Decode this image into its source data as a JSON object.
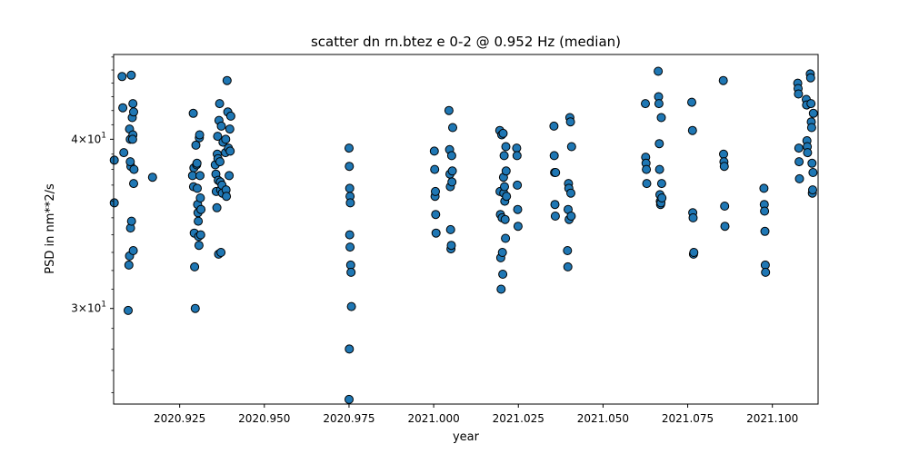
{
  "chart_data": {
    "type": "scatter",
    "title": "scatter dn rn.btez e 0-2 @ 0.952 Hz (median)",
    "xlabel": "year",
    "ylabel": "PSD in nm**2/s",
    "xlim": [
      2020.9055,
      2021.1135
    ],
    "ylim": [
      25.5,
      46.2
    ],
    "yscale": "log",
    "grid": false,
    "marker_color": "#1f77b4",
    "marker_edge_color": "#000000",
    "x_ticks": [
      2020.925,
      2020.95,
      2020.975,
      2021.0,
      2021.025,
      2021.05,
      2021.075,
      2021.1
    ],
    "x_tick_labels": [
      "2020.925",
      "2020.950",
      "2020.975",
      "2021.000",
      "2021.025",
      "2021.050",
      "2021.075",
      "2021.100"
    ],
    "y_ticks": [
      30,
      40
    ],
    "y_tick_labels": [
      {
        "mantissa": "3",
        "times": "×",
        "base": "10",
        "exp": "1"
      },
      {
        "mantissa": "4",
        "times": "×",
        "base": "10",
        "exp": "1"
      }
    ],
    "points": [
      [
        2020.9057,
        38.6
      ],
      [
        2020.9057,
        35.9
      ],
      [
        2020.908,
        44.5
      ],
      [
        2020.9082,
        42.2
      ],
      [
        2020.9085,
        39.1
      ],
      [
        2020.9098,
        29.9
      ],
      [
        2020.91,
        32.3
      ],
      [
        2020.9102,
        32.8
      ],
      [
        2020.9105,
        34.4
      ],
      [
        2020.9102,
        40.7
      ],
      [
        2020.9104,
        40.0
      ],
      [
        2020.9106,
        38.2
      ],
      [
        2020.9104,
        38.5
      ],
      [
        2020.9107,
        44.6
      ],
      [
        2020.9108,
        34.8
      ],
      [
        2020.9112,
        42.5
      ],
      [
        2020.911,
        41.5
      ],
      [
        2020.9114,
        41.9
      ],
      [
        2020.9112,
        40.3
      ],
      [
        2020.9114,
        37.1
      ],
      [
        2020.9115,
        38.0
      ],
      [
        2020.9113,
        33.1
      ],
      [
        2020.9111,
        40.0
      ],
      [
        2020.917,
        37.5
      ],
      [
        2020.929,
        41.8
      ],
      [
        2020.9292,
        38.1
      ],
      [
        2020.9288,
        37.6
      ],
      [
        2020.9291,
        36.9
      ],
      [
        2020.9293,
        34.1
      ],
      [
        2020.9294,
        32.2
      ],
      [
        2020.9296,
        30.0
      ],
      [
        2020.9298,
        39.6
      ],
      [
        2020.93,
        38.3
      ],
      [
        2020.9301,
        38.4
      ],
      [
        2020.9302,
        36.8
      ],
      [
        2020.9303,
        35.8
      ],
      [
        2020.9304,
        35.3
      ],
      [
        2020.9305,
        34.8
      ],
      [
        2020.9306,
        33.9
      ],
      [
        2020.9307,
        33.4
      ],
      [
        2020.9308,
        40.1
      ],
      [
        2020.9309,
        40.3
      ],
      [
        2020.931,
        37.6
      ],
      [
        2020.9311,
        36.2
      ],
      [
        2020.9312,
        34.0
      ],
      [
        2020.9313,
        35.5
      ],
      [
        2020.9355,
        38.3
      ],
      [
        2020.9357,
        37.7
      ],
      [
        2020.9358,
        36.6
      ],
      [
        2020.936,
        35.6
      ],
      [
        2020.9362,
        40.2
      ],
      [
        2020.9361,
        39.0
      ],
      [
        2020.9363,
        38.7
      ],
      [
        2020.9364,
        37.3
      ],
      [
        2020.9365,
        32.9
      ],
      [
        2020.9366,
        41.3
      ],
      [
        2020.9368,
        42.5
      ],
      [
        2020.9369,
        38.5
      ],
      [
        2020.937,
        37.2
      ],
      [
        2020.9371,
        36.7
      ],
      [
        2020.9372,
        33.0
      ],
      [
        2020.9373,
        40.9
      ],
      [
        2020.9375,
        37.0
      ],
      [
        2020.9376,
        36.5
      ],
      [
        2020.9378,
        39.8
      ],
      [
        2020.9385,
        39.1
      ],
      [
        2020.9386,
        40.0
      ],
      [
        2020.9387,
        36.7
      ],
      [
        2020.9388,
        36.3
      ],
      [
        2020.939,
        44.2
      ],
      [
        2020.9392,
        41.9
      ],
      [
        2020.9394,
        39.4
      ],
      [
        2020.9396,
        37.6
      ],
      [
        2020.9398,
        40.7
      ],
      [
        2020.9399,
        39.2
      ],
      [
        2020.9401,
        41.6
      ],
      [
        2020.975,
        39.4
      ],
      [
        2020.9751,
        38.2
      ],
      [
        2020.9752,
        36.8
      ],
      [
        2020.9753,
        36.3
      ],
      [
        2020.9754,
        35.9
      ],
      [
        2020.9752,
        34.0
      ],
      [
        2020.9753,
        33.3
      ],
      [
        2020.9755,
        32.3
      ],
      [
        2020.9756,
        31.9
      ],
      [
        2020.9757,
        30.1
      ],
      [
        2020.9751,
        28.0
      ],
      [
        2020.975,
        25.7
      ],
      [
        2021.0002,
        39.2
      ],
      [
        2021.0003,
        38.0
      ],
      [
        2021.0004,
        36.3
      ],
      [
        2021.0005,
        36.6
      ],
      [
        2021.0006,
        35.2
      ],
      [
        2021.0007,
        34.1
      ],
      [
        2021.0045,
        42.0
      ],
      [
        2021.0047,
        39.3
      ],
      [
        2021.0048,
        37.7
      ],
      [
        2021.0049,
        36.9
      ],
      [
        2021.005,
        34.3
      ],
      [
        2021.0051,
        33.2
      ],
      [
        2021.0052,
        33.4
      ],
      [
        2021.0053,
        38.9
      ],
      [
        2021.0054,
        37.2
      ],
      [
        2021.0055,
        37.9
      ],
      [
        2021.0056,
        40.8
      ],
      [
        2021.0195,
        40.6
      ],
      [
        2021.0196,
        36.6
      ],
      [
        2021.0197,
        35.2
      ],
      [
        2021.0198,
        32.7
      ],
      [
        2021.0199,
        31.0
      ],
      [
        2021.0201,
        40.3
      ],
      [
        2021.0202,
        35.0
      ],
      [
        2021.0203,
        33.0
      ],
      [
        2021.0204,
        31.8
      ],
      [
        2021.0205,
        40.4
      ],
      [
        2021.0206,
        37.5
      ],
      [
        2021.0207,
        36.5
      ],
      [
        2021.0208,
        38.9
      ],
      [
        2021.0209,
        36.9
      ],
      [
        2021.021,
        36.0
      ],
      [
        2021.0211,
        34.9
      ],
      [
        2021.0212,
        33.8
      ],
      [
        2021.0213,
        39.5
      ],
      [
        2021.0214,
        37.9
      ],
      [
        2021.0215,
        36.3
      ],
      [
        2021.0245,
        39.4
      ],
      [
        2021.0246,
        38.9
      ],
      [
        2021.0247,
        37.0
      ],
      [
        2021.0248,
        35.5
      ],
      [
        2021.0249,
        34.5
      ],
      [
        2021.0355,
        40.9
      ],
      [
        2021.0356,
        38.9
      ],
      [
        2021.0357,
        37.8
      ],
      [
        2021.0358,
        35.8
      ],
      [
        2021.0359,
        35.1
      ],
      [
        2021.036,
        37.8
      ],
      [
        2021.0395,
        33.1
      ],
      [
        2021.0396,
        32.2
      ],
      [
        2021.0397,
        35.5
      ],
      [
        2021.0398,
        37.1
      ],
      [
        2021.0399,
        36.8
      ],
      [
        2021.04,
        34.9
      ],
      [
        2021.0402,
        41.5
      ],
      [
        2021.0404,
        41.2
      ],
      [
        2021.0405,
        36.5
      ],
      [
        2021.0406,
        35.1
      ],
      [
        2021.0407,
        39.5
      ],
      [
        2021.0625,
        42.5
      ],
      [
        2021.0626,
        38.8
      ],
      [
        2021.0627,
        38.4
      ],
      [
        2021.0628,
        38.0
      ],
      [
        2021.0629,
        37.1
      ],
      [
        2021.0663,
        44.9
      ],
      [
        2021.0664,
        43.0
      ],
      [
        2021.0665,
        42.5
      ],
      [
        2021.0666,
        39.7
      ],
      [
        2021.0667,
        38.0
      ],
      [
        2021.0668,
        36.4
      ],
      [
        2021.0669,
        36.0
      ],
      [
        2021.067,
        35.8
      ],
      [
        2021.0671,
        35.9
      ],
      [
        2021.0672,
        41.5
      ],
      [
        2021.0673,
        37.1
      ],
      [
        2021.0674,
        36.2
      ],
      [
        2021.0762,
        42.6
      ],
      [
        2021.0764,
        40.6
      ],
      [
        2021.0765,
        35.3
      ],
      [
        2021.0766,
        35.0
      ],
      [
        2021.0767,
        32.9
      ],
      [
        2021.0768,
        33.0
      ],
      [
        2021.0855,
        44.2
      ],
      [
        2021.0856,
        39.0
      ],
      [
        2021.0857,
        38.5
      ],
      [
        2021.0858,
        38.2
      ],
      [
        2021.0859,
        35.7
      ],
      [
        2021.086,
        34.5
      ],
      [
        2021.0975,
        36.8
      ],
      [
        2021.0976,
        35.8
      ],
      [
        2021.0977,
        35.4
      ],
      [
        2021.0978,
        34.2
      ],
      [
        2021.0979,
        32.3
      ],
      [
        2021.098,
        31.9
      ],
      [
        2021.1075,
        44.0
      ],
      [
        2021.1076,
        43.6
      ],
      [
        2021.1077,
        43.2
      ],
      [
        2021.1078,
        39.4
      ],
      [
        2021.1079,
        38.5
      ],
      [
        2021.108,
        37.4
      ],
      [
        2021.11,
        42.8
      ],
      [
        2021.1101,
        42.4
      ],
      [
        2021.1102,
        39.9
      ],
      [
        2021.1103,
        39.5
      ],
      [
        2021.1104,
        39.1
      ],
      [
        2021.1112,
        44.7
      ],
      [
        2021.1113,
        44.4
      ],
      [
        2021.1114,
        42.5
      ],
      [
        2021.1115,
        41.2
      ],
      [
        2021.1116,
        40.8
      ],
      [
        2021.1117,
        38.4
      ],
      [
        2021.1118,
        36.5
      ],
      [
        2021.1119,
        36.7
      ],
      [
        2021.112,
        37.8
      ],
      [
        2021.1121,
        41.8
      ]
    ]
  }
}
